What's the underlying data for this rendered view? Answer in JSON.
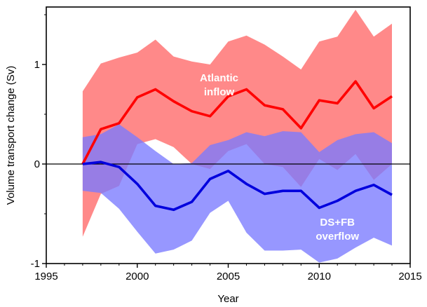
{
  "chart_data": {
    "type": "area",
    "xlabel": "Year",
    "ylabel": "Volume transport change (Sv)",
    "xlim": [
      1995,
      2015
    ],
    "ylim": [
      -1,
      1.55
    ],
    "x_ticks": [
      1995,
      2000,
      2005,
      2010,
      2015
    ],
    "y_ticks": [
      -1,
      0,
      1
    ],
    "zero_line": true,
    "grid": false,
    "series": [
      {
        "color": "#ff0000",
        "band_color": "#ff7c7c",
        "x": [
          1997,
          1998,
          1999,
          2000,
          2001,
          2002,
          2003,
          2004,
          2005,
          2006,
          2007,
          2008,
          2009,
          2010,
          2011,
          2012,
          2013,
          2014
        ],
        "y": [
          0.0,
          0.35,
          0.41,
          0.67,
          0.75,
          0.63,
          0.53,
          0.48,
          0.68,
          0.75,
          0.59,
          0.55,
          0.36,
          0.64,
          0.61,
          0.83,
          0.56,
          0.68
        ],
        "upper": [
          0.73,
          1.01,
          1.07,
          1.12,
          1.25,
          1.08,
          1.03,
          1.0,
          1.23,
          1.29,
          1.2,
          1.08,
          0.95,
          1.23,
          1.28,
          1.55,
          1.28,
          1.41
        ],
        "lower": [
          -0.73,
          -0.3,
          -0.22,
          0.2,
          0.25,
          0.17,
          0.0,
          -0.05,
          0.13,
          0.2,
          0.0,
          -0.03,
          -0.23,
          0.05,
          -0.06,
          0.1,
          -0.16,
          0.0
        ]
      },
      {
        "color": "#0000dd",
        "band_color": "#7a7aff",
        "x": [
          1997,
          1998,
          1999,
          2000,
          2001,
          2002,
          2003,
          2004,
          2005,
          2006,
          2007,
          2008,
          2009,
          2010,
          2011,
          2012,
          2013,
          2014
        ],
        "y": [
          0.0,
          0.02,
          -0.03,
          -0.2,
          -0.42,
          -0.46,
          -0.38,
          -0.15,
          -0.07,
          -0.2,
          -0.3,
          -0.27,
          -0.27,
          -0.44,
          -0.37,
          -0.27,
          -0.21,
          -0.31
        ],
        "upper": [
          0.27,
          0.3,
          0.4,
          0.27,
          0.13,
          0.0,
          0.01,
          0.19,
          0.24,
          0.32,
          0.28,
          0.33,
          0.32,
          0.12,
          0.24,
          0.3,
          0.32,
          0.21
        ],
        "lower": [
          -0.27,
          -0.29,
          -0.45,
          -0.68,
          -0.9,
          -0.86,
          -0.77,
          -0.49,
          -0.37,
          -0.69,
          -0.87,
          -0.87,
          -0.86,
          -0.99,
          -0.95,
          -0.84,
          -0.74,
          -0.82
        ]
      }
    ],
    "annotations": [
      {
        "lines": [
          "Atlantic",
          "inflow"
        ],
        "x": 2004.5,
        "y": 0.83
      },
      {
        "lines": [
          "DS+FB",
          "overflow"
        ],
        "x": 2011.0,
        "y": -0.62
      }
    ]
  }
}
